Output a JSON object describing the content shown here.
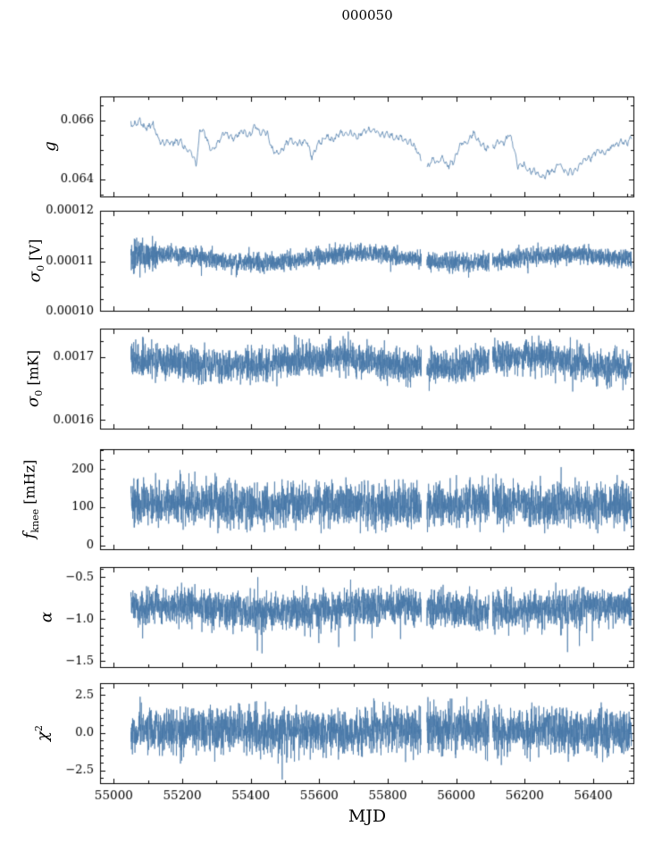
{
  "title": "000050",
  "xaxis_label": "MJD",
  "chart_data": {
    "type": "line",
    "title": "000050",
    "xlabel": "MJD",
    "line_color": "#4878a8",
    "line_width": 0.75,
    "xlim": [
      54960,
      56520
    ],
    "x_data_range": [
      55050,
      56512
    ],
    "gaps": [
      [
        55898,
        55914
      ],
      [
        56096,
        56106
      ]
    ],
    "xticks": [
      {
        "v": 55000,
        "label": "55000"
      },
      {
        "v": 55200,
        "label": "55200"
      },
      {
        "v": 55400,
        "label": "55400"
      },
      {
        "v": 55600,
        "label": "55600"
      },
      {
        "v": 55800,
        "label": "55800"
      },
      {
        "v": 56000,
        "label": "56000"
      },
      {
        "v": 56200,
        "label": "56200"
      },
      {
        "v": 56400,
        "label": "56400"
      }
    ],
    "xminor": [
      55100,
      55300,
      55500,
      55700,
      55900,
      56100,
      56300,
      56500
    ],
    "legend": "none",
    "grid": false,
    "panels": [
      {
        "id": "g",
        "ylabel": {
          "main": "g",
          "sub": "",
          "sup": "",
          "unit": ""
        },
        "ylim": [
          0.0634,
          0.0668
        ],
        "yticks": [
          {
            "v": 0.064,
            "label": "0.064"
          },
          {
            "v": 0.066,
            "label": "0.066"
          }
        ],
        "yminor_step": 0.0005,
        "series": {
          "kind": "smooth",
          "n": 900,
          "noise": 7e-05,
          "anchors": [
            [
              55050,
              0.0658
            ],
            [
              55075,
              0.066
            ],
            [
              55090,
              0.0657
            ],
            [
              55110,
              0.0659
            ],
            [
              55130,
              0.0654
            ],
            [
              55150,
              0.0652
            ],
            [
              55175,
              0.0653
            ],
            [
              55200,
              0.0652
            ],
            [
              55225,
              0.0649
            ],
            [
              55240,
              0.0645
            ],
            [
              55252,
              0.0657
            ],
            [
              55270,
              0.0654
            ],
            [
              55285,
              0.065
            ],
            [
              55300,
              0.0651
            ],
            [
              55320,
              0.0656
            ],
            [
              55340,
              0.0654
            ],
            [
              55360,
              0.0655
            ],
            [
              55380,
              0.0656
            ],
            [
              55400,
              0.0655
            ],
            [
              55415,
              0.0658
            ],
            [
              55430,
              0.0656
            ],
            [
              55450,
              0.0655
            ],
            [
              55465,
              0.065
            ],
            [
              55480,
              0.0648
            ],
            [
              55500,
              0.0652
            ],
            [
              55520,
              0.0653
            ],
            [
              55545,
              0.0652
            ],
            [
              55565,
              0.0653
            ],
            [
              55580,
              0.0647
            ],
            [
              55600,
              0.0653
            ],
            [
              55620,
              0.0654
            ],
            [
              55645,
              0.0654
            ],
            [
              55670,
              0.0656
            ],
            [
              55695,
              0.0655
            ],
            [
              55720,
              0.0655
            ],
            [
              55745,
              0.0657
            ],
            [
              55770,
              0.0656
            ],
            [
              55800,
              0.0655
            ],
            [
              55830,
              0.0654
            ],
            [
              55860,
              0.0653
            ],
            [
              55885,
              0.065
            ],
            [
              55905,
              0.0646
            ],
            [
              55915,
              0.0644
            ],
            [
              55930,
              0.0647
            ],
            [
              55945,
              0.0645
            ],
            [
              55960,
              0.0648
            ],
            [
              55975,
              0.0644
            ],
            [
              55990,
              0.0646
            ],
            [
              56010,
              0.0651
            ],
            [
              56030,
              0.0653
            ],
            [
              56050,
              0.0655
            ],
            [
              56070,
              0.0653
            ],
            [
              56085,
              0.065
            ],
            [
              56100,
              0.0651
            ],
            [
              56120,
              0.0652
            ],
            [
              56140,
              0.0653
            ],
            [
              56155,
              0.0655
            ],
            [
              56170,
              0.065
            ],
            [
              56180,
              0.0645
            ],
            [
              56200,
              0.0644
            ],
            [
              56220,
              0.0643
            ],
            [
              56240,
              0.0642
            ],
            [
              56260,
              0.0641
            ],
            [
              56280,
              0.0643
            ],
            [
              56300,
              0.0645
            ],
            [
              56320,
              0.0643
            ],
            [
              56340,
              0.0642
            ],
            [
              56360,
              0.0645
            ],
            [
              56380,
              0.0647
            ],
            [
              56400,
              0.0648
            ],
            [
              56420,
              0.065
            ],
            [
              56440,
              0.0649
            ],
            [
              56460,
              0.0652
            ],
            [
              56480,
              0.0652
            ],
            [
              56500,
              0.0653
            ],
            [
              56512,
              0.0654
            ]
          ]
        }
      },
      {
        "id": "sigma0_V",
        "ylabel": {
          "main": "σ",
          "sub": "0",
          "sup": "",
          "unit": " [V]"
        },
        "ylim": [
          0.0001,
          0.00012
        ],
        "yticks": [
          {
            "v": 0.0001,
            "label": "0.00010"
          },
          {
            "v": 0.00011,
            "label": "0.00011"
          },
          {
            "v": 0.00012,
            "label": "0.00012"
          }
        ],
        "yminor_step": 2.5e-06,
        "series": {
          "kind": "noise",
          "n": 3200,
          "mean": 0.0001106,
          "sigma": 9e-07,
          "wide_until": 55125,
          "wide_factor": 1.7,
          "slow": {
            "amp": 6e-07,
            "period": 640,
            "phase": 1.2
          },
          "spikes": {
            "up_rate": 0.002,
            "up": 1.8e-06,
            "down_rate": 0.003,
            "down": 3.5e-06
          },
          "clip": [
            0.0001038,
            0.000115
          ]
        }
      },
      {
        "id": "sigma0_mK",
        "ylabel": {
          "main": "σ",
          "sub": "0",
          "sup": "",
          "unit": " [mK]"
        },
        "ylim": [
          0.001585,
          0.001745
        ],
        "yticks": [
          {
            "v": 0.0016,
            "label": "0.0016"
          },
          {
            "v": 0.0017,
            "label": "0.0017"
          }
        ],
        "yminor_step": 2.5e-05,
        "series": {
          "kind": "noise",
          "n": 3200,
          "mean": 0.001692,
          "sigma": 1.3e-05,
          "slow": {
            "amp": 6e-06,
            "period": 620,
            "phase": 2.4
          },
          "spikes": {
            "up_rate": 0.002,
            "up": 3e-05,
            "down_rate": 0.003,
            "down": 6e-05
          },
          "clip": [
            0.001588,
            0.001743
          ]
        }
      },
      {
        "id": "f_knee",
        "ylabel": {
          "main": "f",
          "sub": "knee",
          "sup": "",
          "unit": " [mHz]"
        },
        "ylim": [
          -12,
          252
        ],
        "yticks": [
          {
            "v": 0,
            "label": "0"
          },
          {
            "v": 100,
            "label": "100"
          },
          {
            "v": 200,
            "label": "200"
          }
        ],
        "yminor_step": 25,
        "series": {
          "kind": "noise",
          "n": 3200,
          "mean": 107,
          "sigma": 28,
          "slow": {
            "amp": 4,
            "period": 500,
            "phase": 0.3
          },
          "spikes": {
            "up_rate": 0.008,
            "up": 80,
            "down_rate": 0.004,
            "down": 40
          },
          "clip": [
            32,
            250
          ]
        }
      },
      {
        "id": "alpha",
        "ylabel": {
          "main": "α",
          "sub": "",
          "sup": "",
          "unit": ""
        },
        "ylim": [
          -1.58,
          -0.38
        ],
        "yticks": [
          {
            "v": -0.5,
            "label": "−0.5"
          },
          {
            "v": -1.0,
            "label": "−1.0"
          },
          {
            "v": -1.5,
            "label": "−1.5"
          }
        ],
        "yminor_step": 0.1,
        "series": {
          "kind": "noise",
          "n": 3200,
          "mean": -0.88,
          "sigma": 0.105,
          "slow": {
            "amp": 0.02,
            "period": 700,
            "phase": 0.8
          },
          "spikes": {
            "up_rate": 0.003,
            "up": 0.28,
            "down_rate": 0.008,
            "down": 0.5
          },
          "clip": [
            -1.52,
            -0.5
          ]
        }
      },
      {
        "id": "chi2",
        "ylabel": {
          "main": "χ",
          "sub": "",
          "sup": "2",
          "unit": ""
        },
        "ylim": [
          -3.4,
          3.3
        ],
        "yticks": [
          {
            "v": -2.5,
            "label": "−2.5"
          },
          {
            "v": 0.0,
            "label": "0.0"
          },
          {
            "v": 2.5,
            "label": "2.5"
          }
        ],
        "yminor_step": 0.5,
        "series": {
          "kind": "noise",
          "n": 3200,
          "mean": 0.18,
          "sigma": 0.75,
          "slow": {
            "amp": 0.05,
            "period": 800,
            "phase": 0.5
          },
          "spikes": {
            "up_rate": 0.005,
            "up": 2.0,
            "down_rate": 0.005,
            "down": 2.2
          },
          "clip": [
            -3.1,
            3.05
          ]
        }
      }
    ]
  }
}
